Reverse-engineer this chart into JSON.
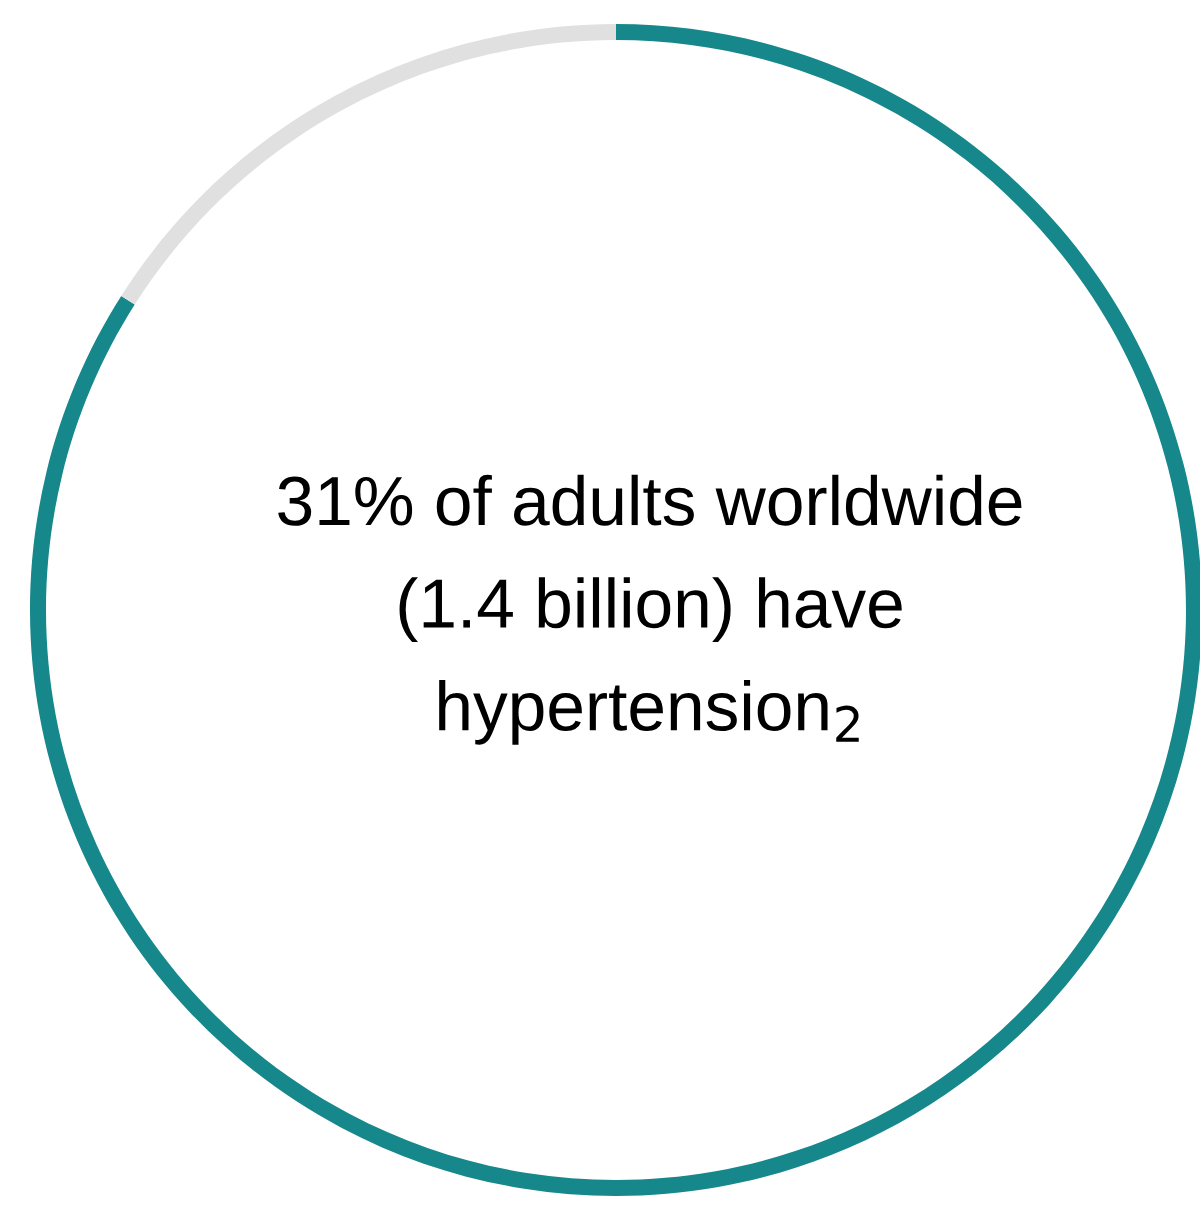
{
  "chart_data": {
    "type": "donut",
    "categories": [
      null,
      null
    ],
    "values": [
      84,
      16
    ],
    "colors": [
      "#16878a",
      "#e0e0e0"
    ],
    "annotations": [
      "31% of adults worldwide\n(1.4 billion) have\nhypertension$_{2}$"
    ]
  }
}
